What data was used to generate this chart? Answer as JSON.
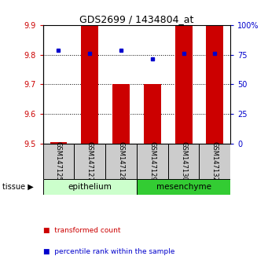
{
  "title": "GDS2699 / 1434804_at",
  "samples": [
    "GSM147125",
    "GSM147127",
    "GSM147128",
    "GSM147129",
    "GSM147130",
    "GSM147132"
  ],
  "bar_values": [
    9.505,
    9.9,
    9.7,
    9.7,
    9.9,
    9.9
  ],
  "blue_values": [
    9.815,
    9.805,
    9.815,
    9.785,
    9.805,
    9.805
  ],
  "bar_bottom": 9.5,
  "ylim_left": [
    9.5,
    9.9
  ],
  "ylim_right": [
    0,
    100
  ],
  "yticks_left": [
    9.5,
    9.6,
    9.7,
    9.8,
    9.9
  ],
  "yticks_right": [
    0,
    25,
    50,
    75,
    100
  ],
  "ytick_labels_right": [
    "0",
    "25",
    "50",
    "75",
    "100%"
  ],
  "bar_color": "#cc0000",
  "blue_color": "#0000cc",
  "tissue_groups": [
    {
      "label": "epithelium",
      "start": 0,
      "end": 3,
      "color": "#ccffcc"
    },
    {
      "label": "mesenchyme",
      "start": 3,
      "end": 6,
      "color": "#33cc33"
    }
  ],
  "tissue_label": "tissue",
  "bg_color": "#ffffff",
  "plot_bg_color": "#ffffff",
  "sample_box_color": "#cccccc",
  "left_tick_color": "#cc0000",
  "right_tick_color": "#0000cc",
  "bar_width": 0.55,
  "legend_items": [
    {
      "color": "#cc0000",
      "label": "transformed count"
    },
    {
      "color": "#0000cc",
      "label": "percentile rank within the sample"
    }
  ]
}
